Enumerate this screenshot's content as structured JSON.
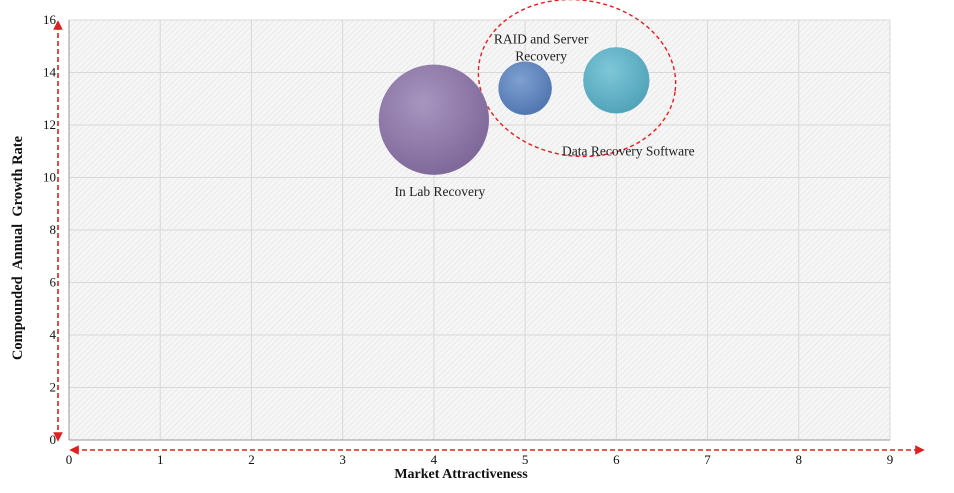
{
  "chart_data": {
    "type": "scatter",
    "xlabel": "Market Attractiveness",
    "ylabel": "Compounded  Annual  Growth Rate",
    "xlim": [
      0,
      9
    ],
    "ylim": [
      0,
      16
    ],
    "x_ticks": [
      "0",
      "1",
      "2",
      "3",
      "4",
      "5",
      "6",
      "7",
      "8",
      "9"
    ],
    "y_ticks": [
      "0",
      "2",
      "4",
      "6",
      "8",
      "10",
      "12",
      "14",
      "16"
    ],
    "grid": true,
    "bubbles": [
      {
        "label": "In Lab Recovery",
        "x": 4.0,
        "y": 12.2,
        "size": 3.0,
        "color": "#8e78a8"
      },
      {
        "label": "RAID and Server Recovery",
        "x": 5.0,
        "y": 13.4,
        "size": 1.45,
        "color": "#5f85be"
      },
      {
        "label": "Data Recovery Software",
        "x": 6.0,
        "y": 13.7,
        "size": 1.8,
        "color": "#63b3c8"
      }
    ],
    "highlight_color": "#e02020",
    "axis_arrow_color": "#e02020"
  }
}
